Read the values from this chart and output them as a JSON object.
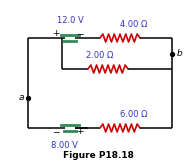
{
  "title": "Figure P18.18",
  "title_fontsize": 6.5,
  "title_fontstyle": "bold",
  "background_color": "#ffffff",
  "line_color": "#000000",
  "resistor_color": "#cc0000",
  "battery_color": "#2e8b57",
  "label_color_blue": "#3333cc",
  "label_color_black": "#000000",
  "V1": "12.0 V",
  "V2": "8.00 V",
  "R1": "4.00 Ω",
  "R2": "2.00 Ω",
  "R3": "6.00 Ω",
  "node_a": "a",
  "node_b": "b",
  "lw": 1.1
}
